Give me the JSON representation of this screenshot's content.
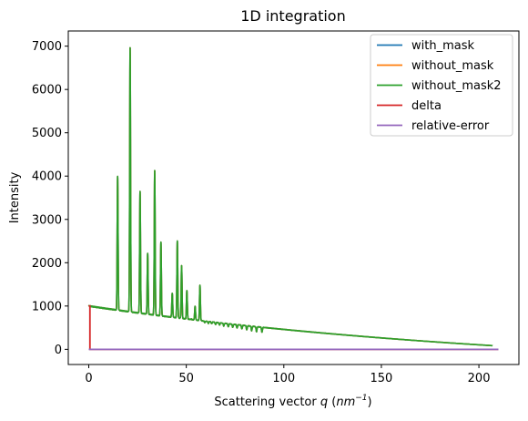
{
  "chart_data": {
    "type": "line",
    "title": "1D integration",
    "xlabel_prefix": "Scattering vector ",
    "xlabel_var": "q",
    "xlabel_unit_open": " (",
    "xlabel_unit": "nm",
    "xlabel_unit_exp": "−1",
    "xlabel_unit_close": ")",
    "ylabel": "Intensity",
    "xlim": [
      -10.5,
      220.5
    ],
    "ylim": [
      -350,
      7350
    ],
    "x_ticks": [
      0,
      50,
      100,
      150,
      200
    ],
    "y_ticks": [
      0,
      1000,
      2000,
      3000,
      4000,
      5000,
      6000,
      7000
    ],
    "legend_position": "top-right",
    "grid": false,
    "background": {
      "q_start": 0,
      "q_end": 207,
      "start": 1000,
      "end": 85,
      "decay": 0.0042
    },
    "peaks": [
      {
        "q": 14.8,
        "intensity": 4000
      },
      {
        "q": 21.2,
        "intensity": 6970
      },
      {
        "q": 26.3,
        "intensity": 3650
      },
      {
        "q": 30.2,
        "intensity": 2220
      },
      {
        "q": 33.8,
        "intensity": 4120
      },
      {
        "q": 37.0,
        "intensity": 2470
      },
      {
        "q": 42.8,
        "intensity": 1290
      },
      {
        "q": 45.4,
        "intensity": 2500
      },
      {
        "q": 47.6,
        "intensity": 1930
      },
      {
        "q": 50.3,
        "intensity": 1360
      },
      {
        "q": 52.5,
        "intensity": 700
      },
      {
        "q": 54.5,
        "intensity": 990
      },
      {
        "q": 57.0,
        "intensity": 1480
      },
      {
        "q": 59.5,
        "intensity": 620
      },
      {
        "q": 61.3,
        "intensity": 600
      },
      {
        "q": 63.0,
        "intensity": 590
      },
      {
        "q": 65.0,
        "intensity": 570
      },
      {
        "q": 67.0,
        "intensity": 560
      },
      {
        "q": 69.2,
        "intensity": 540
      },
      {
        "q": 71.5,
        "intensity": 520
      },
      {
        "q": 73.8,
        "intensity": 510
      },
      {
        "q": 76.0,
        "intensity": 490
      },
      {
        "q": 78.5,
        "intensity": 470
      },
      {
        "q": 81.0,
        "intensity": 450
      },
      {
        "q": 83.5,
        "intensity": 430
      },
      {
        "q": 86.0,
        "intensity": 410
      },
      {
        "q": 88.8,
        "intensity": 395
      }
    ],
    "series": [
      {
        "name": "with_mask",
        "color": "#1f77b4"
      },
      {
        "name": "without_mask",
        "color": "#ff7f0e"
      },
      {
        "name": "without_mask2",
        "color": "#2ca02c"
      },
      {
        "name": "delta",
        "color": "#d62728"
      },
      {
        "name": "relative-error",
        "color": "#9467bd"
      }
    ],
    "delta": {
      "x": [
        0,
        0.6,
        0.6,
        210
      ],
      "y": [
        1000,
        1000,
        0,
        0
      ]
    },
    "relative_error": {
      "x": [
        0,
        210
      ],
      "y": [
        0,
        0
      ]
    }
  }
}
